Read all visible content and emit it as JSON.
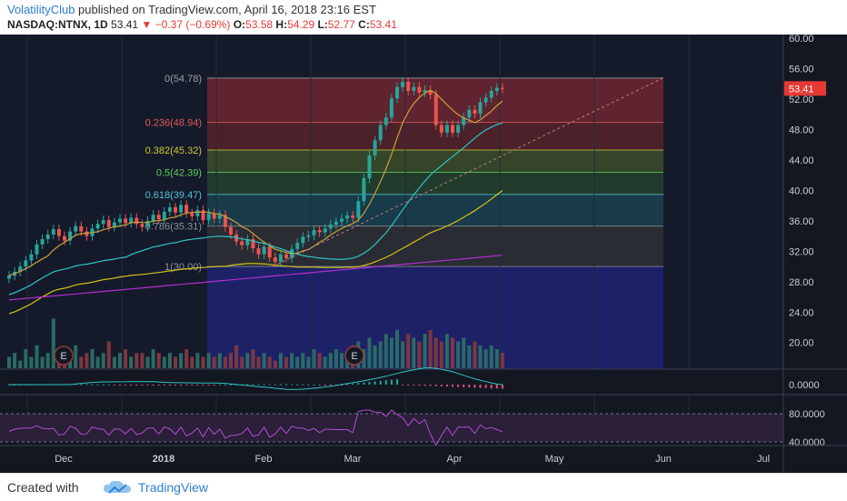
{
  "header": {
    "author": "VolatilityClub",
    "published": " published on TradingView.com, April 16, 2018 23:16 EST",
    "symbol": "NASDAQ:NTNX, 1D",
    "last": "53.41",
    "change": "−0.37 (−0.69%)",
    "o_label": "O:",
    "o_val": "53.58",
    "h_label": "H:",
    "h_val": "54.29",
    "l_label": "L:",
    "l_val": "52.77",
    "c_label": "C:",
    "c_val": "53.41"
  },
  "footer": {
    "created_with": "Created with",
    "brand": "TradingView"
  },
  "colors": {
    "background": "#131722",
    "up": "#26a69a",
    "down": "#ef5350",
    "fib_0": "#9c2e35",
    "fib_236": "#7a2a2a",
    "fib_382": "#4f6a2a",
    "fib_5": "#2c5a2e",
    "fib_618": "#1d5560",
    "fib_786": "#3c3c3c",
    "fib_1": "#252a3d",
    "fib_ext": "#1f2378",
    "ma20": "#c8a13c",
    "ma50": "#2ec4c4",
    "ma100": "#d4c21a",
    "ma200": "#b22fd1"
  },
  "chart_data": {
    "type": "candlestick",
    "price_axis_ticks": [
      "60.00",
      "56.00",
      "52.00",
      "48.00",
      "44.00",
      "40.00",
      "36.00",
      "32.00",
      "28.00",
      "24.00",
      "20.00"
    ],
    "ylim": [
      16.5,
      60.5
    ],
    "last_price_label": "53.41",
    "x_tick_labels": [
      "Dec",
      "2018",
      "Feb",
      "Mar",
      "Apr",
      "May",
      "Jun",
      "Jul"
    ],
    "fib_levels": [
      {
        "label": "0(54.78)",
        "price": 54.78
      },
      {
        "label": "0.236(48.94)",
        "price": 48.94
      },
      {
        "label": "0.382(45.32)",
        "price": 45.32
      },
      {
        "label": "0.5(42.39)",
        "price": 42.39
      },
      {
        "label": "0.618(39.47)",
        "price": 39.47
      },
      {
        "label": "0.786(35.31)",
        "price": 35.31
      },
      {
        "label": "1(30.00)",
        "price": 30.0
      }
    ],
    "earnings_markers": [
      "E",
      "E"
    ],
    "macd_axis_label": "0.0000",
    "rsi_axis_labels": [
      "80.0000",
      "40.0000"
    ],
    "closes": [
      28.8,
      29.3,
      30.0,
      30.8,
      31.6,
      32.9,
      33.6,
      34.2,
      34.9,
      34.0,
      33.4,
      34.6,
      35.3,
      34.6,
      34.0,
      35.0,
      35.6,
      36.1,
      35.2,
      35.8,
      36.3,
      35.7,
      36.4,
      35.6,
      35.2,
      36.0,
      36.8,
      36.2,
      37.2,
      37.8,
      37.1,
      38.1,
      37.0,
      36.6,
      37.4,
      36.1,
      37.0,
      36.3,
      36.8,
      35.2,
      34.2,
      33.3,
      32.8,
      33.6,
      32.4,
      31.6,
      32.6,
      31.2,
      30.6,
      31.6,
      31.1,
      32.3,
      33.1,
      33.9,
      34.1,
      34.8,
      34.5,
      35.0,
      35.5,
      35.9,
      36.3,
      36.7,
      36.4,
      38.6,
      41.6,
      44.6,
      46.6,
      48.6,
      49.6,
      52.1,
      53.6,
      54.3,
      53.1,
      53.6,
      52.9,
      53.2,
      52.6,
      48.6,
      47.6,
      48.6,
      47.6,
      48.6,
      49.6,
      50.6,
      50.1,
      51.6,
      52.2,
      53.1,
      53.5,
      53.41
    ],
    "volume": [
      3,
      4,
      2,
      5,
      3,
      6,
      3,
      4,
      13,
      5,
      4,
      3,
      6,
      3,
      4,
      5,
      3,
      4,
      7,
      3,
      4,
      5,
      3,
      4,
      4,
      3,
      5,
      4,
      3,
      4,
      3,
      4,
      5,
      3,
      4,
      3,
      4,
      3,
      4,
      3,
      4,
      6,
      3,
      4,
      5,
      3,
      4,
      3,
      2,
      4,
      3,
      4,
      3,
      4,
      3,
      5,
      4,
      3,
      4,
      5,
      4,
      3,
      6,
      7,
      5,
      8,
      6,
      7,
      9,
      8,
      10,
      7,
      9,
      8,
      7,
      9,
      10,
      8,
      7,
      9,
      8,
      7,
      8,
      6,
      7,
      6,
      5,
      6,
      5,
      4
    ]
  }
}
